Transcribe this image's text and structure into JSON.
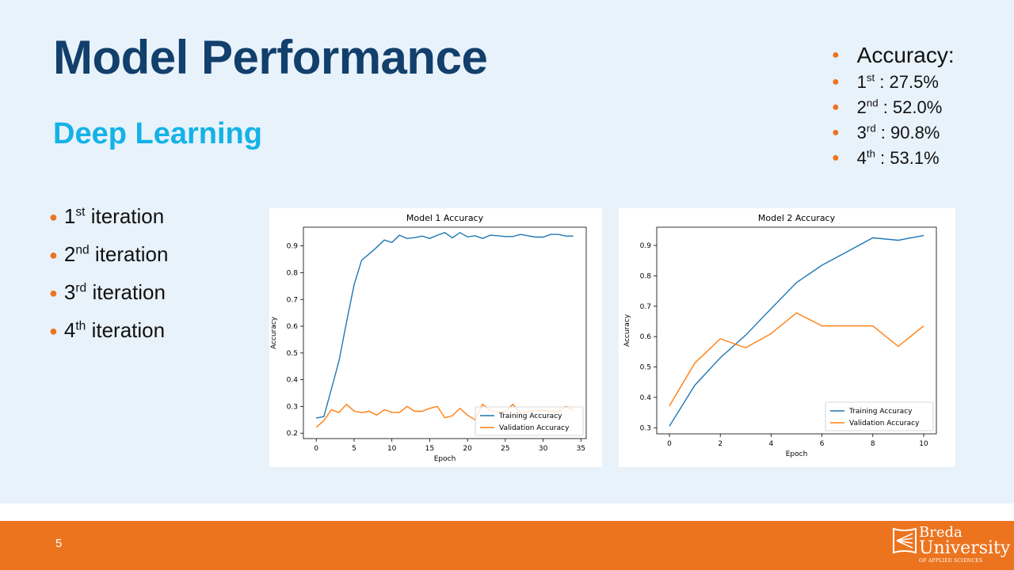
{
  "slide": {
    "title": "Model Performance",
    "subtitle": "Deep Learning",
    "page_number": "5",
    "iterations": [
      {
        "num": "1",
        "sup": "st",
        "text": " iteration"
      },
      {
        "num": "2",
        "sup": "nd",
        "text": " iteration"
      },
      {
        "num": "3",
        "sup": "rd",
        "text": " iteration"
      },
      {
        "num": "4",
        "sup": "th",
        "text": " iteration"
      }
    ],
    "accuracy_heading": "Accuracy:",
    "accuracies": [
      {
        "num": "1",
        "sup": "st",
        "value": " : 27.5%"
      },
      {
        "num": "2",
        "sup": "nd",
        "value": " : 52.0%"
      },
      {
        "num": "3",
        "sup": "rd",
        "value": " : 90.8%"
      },
      {
        "num": "4",
        "sup": "th",
        "value": " : 53.1%"
      }
    ],
    "logo": {
      "line1": "Breda",
      "line2": "University",
      "line3": "OF APPLIED SCIENCES"
    }
  },
  "colors": {
    "title": "#123f6b",
    "subtitle": "#14b2e6",
    "accent": "#ec741f",
    "training": "#1f77b4",
    "validation": "#ff7f0e"
  },
  "chart_data": [
    {
      "type": "line",
      "title": "Model 1 Accuracy",
      "xlabel": "Epoch",
      "ylabel": "Accuracy",
      "xlim": [
        -1.7,
        35.7
      ],
      "ylim": [
        0.18,
        0.97
      ],
      "xticks": [
        0,
        5,
        10,
        15,
        20,
        25,
        30,
        35
      ],
      "yticks": [
        0.2,
        0.3,
        0.4,
        0.5,
        0.6,
        0.7,
        0.8,
        0.9
      ],
      "legend_position": "lower-right",
      "x": [
        0,
        1,
        2,
        3,
        4,
        5,
        6,
        7,
        8,
        9,
        10,
        11,
        12,
        13,
        14,
        15,
        16,
        17,
        18,
        19,
        20,
        21,
        22,
        23,
        24,
        25,
        26,
        27,
        28,
        29,
        30,
        31,
        32,
        33,
        34
      ],
      "series": [
        {
          "name": "Training Accuracy",
          "values": [
            0.257,
            0.262,
            0.365,
            0.47,
            0.615,
            0.755,
            0.847,
            0.87,
            0.895,
            0.922,
            0.913,
            0.94,
            0.928,
            0.931,
            0.937,
            0.928,
            0.94,
            0.95,
            0.93,
            0.95,
            0.934,
            0.938,
            0.928,
            0.94,
            0.938,
            0.935,
            0.935,
            0.943,
            0.938,
            0.933,
            0.933,
            0.943,
            0.943,
            0.937,
            0.937
          ]
        },
        {
          "name": "Validation Accuracy",
          "values": [
            0.222,
            0.247,
            0.288,
            0.277,
            0.308,
            0.283,
            0.277,
            0.282,
            0.268,
            0.288,
            0.278,
            0.277,
            0.3,
            0.282,
            0.282,
            0.293,
            0.3,
            0.258,
            0.265,
            0.293,
            0.268,
            0.25,
            0.308,
            0.285,
            0.28,
            0.28,
            0.308,
            0.275,
            0.28,
            0.285,
            0.285,
            0.282,
            0.28,
            0.3,
            0.285
          ]
        }
      ]
    },
    {
      "type": "line",
      "title": "Model 2 Accuracy",
      "xlabel": "Epoch",
      "ylabel": "Accuracy",
      "xlim": [
        -0.5,
        10.5
      ],
      "ylim": [
        0.28,
        0.96
      ],
      "xticks": [
        0,
        2,
        4,
        6,
        8,
        10
      ],
      "yticks": [
        0.3,
        0.4,
        0.5,
        0.6,
        0.7,
        0.8,
        0.9
      ],
      "legend_position": "lower-right",
      "x": [
        0,
        1,
        2,
        3,
        4,
        5,
        6,
        7,
        8,
        9,
        10
      ],
      "series": [
        {
          "name": "Training Accuracy",
          "values": [
            0.305,
            0.44,
            0.53,
            0.605,
            0.692,
            0.778,
            0.835,
            0.88,
            0.925,
            0.917,
            0.933
          ]
        },
        {
          "name": "Validation Accuracy",
          "values": [
            0.372,
            0.513,
            0.593,
            0.563,
            0.61,
            0.678,
            0.635,
            0.635,
            0.635,
            0.568,
            0.635
          ]
        }
      ]
    }
  ]
}
